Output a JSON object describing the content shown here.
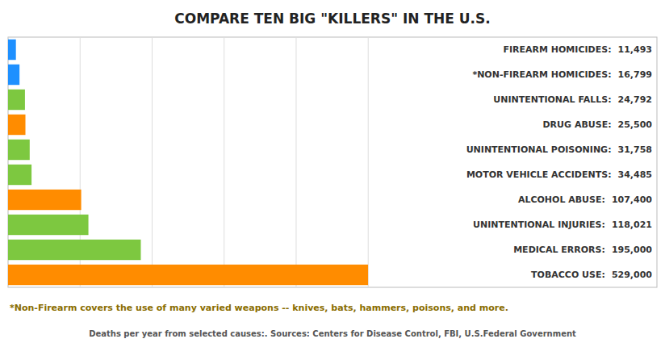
{
  "chart_data": {
    "type": "bar",
    "orientation": "horizontal",
    "title": "COMPARE TEN BIG \"KILLERS\" IN THE U.S.",
    "categories": [
      "TOBACCO USE:",
      "MEDICAL ERRORS:",
      "UNINTENTIONAL INJURIES:",
      "ALCOHOL ABUSE:",
      "MOTOR VEHICLE ACCIDENTS:",
      "UNINTENTIONAL POISONING:",
      "DRUG ABUSE:",
      "UNINTENTIONAL FALLS:",
      "*NON-FIREARM HOMICIDES:",
      "FIREARM HOMICIDES:"
    ],
    "values": [
      529000,
      195000,
      118021,
      107400,
      34485,
      31758,
      25500,
      24792,
      16799,
      11493
    ],
    "value_labels": [
      "529,000",
      "195,000",
      "118,021",
      "107,400",
      "34,485",
      "31,758",
      "25,500",
      "24,792",
      "16,799",
      "11,493"
    ],
    "colors": [
      "#FF8C00",
      "#7DC840",
      "#7DC840",
      "#FF8C00",
      "#7DC840",
      "#7DC840",
      "#FF8C00",
      "#7DC840",
      "#1E90FF",
      "#1E90FF"
    ],
    "data_labels": true,
    "xlim": [
      0,
      529000
    ],
    "xticks": [
      0,
      105800,
      211600,
      317400,
      423200,
      529000
    ],
    "grid": true,
    "tick_labels": false,
    "annotations": [
      "*Non-Firearm covers the use of many varied weapons -- knives, bats, hammers, poisons, and more.",
      "Deaths per year from selected causes:.  Sources:  Centers for Disease Control, FBI, U.S.Federal Government"
    ]
  }
}
